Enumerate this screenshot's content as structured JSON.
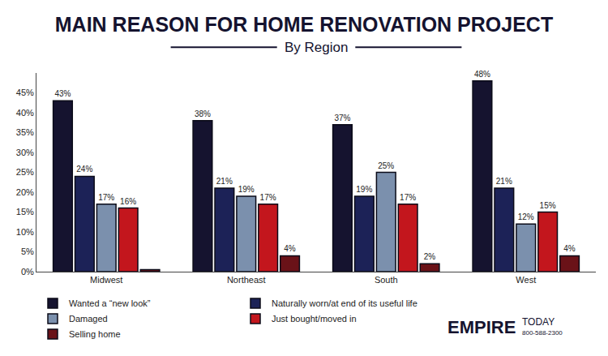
{
  "chart_data": {
    "type": "bar",
    "title": "MAIN REASON FOR HOME RENOVATION PROJECT",
    "subtitle": "By Region",
    "categories": [
      "Midwest",
      "Northeast",
      "South",
      "West"
    ],
    "series": [
      {
        "name": "Wanted a “new look”",
        "color": "#15132f",
        "values": [
          43,
          38,
          37,
          48
        ],
        "value_labels": [
          "43%",
          "38%",
          "37%",
          "48%"
        ]
      },
      {
        "name": "Naturally worn/at end of its useful life",
        "color": "#1c2257",
        "values": [
          24,
          21,
          19,
          21
        ],
        "value_labels": [
          "24%",
          "21%",
          "19%",
          "21%"
        ]
      },
      {
        "name": "Damaged",
        "color": "#7b90ad",
        "values": [
          17,
          19,
          25,
          12
        ],
        "value_labels": [
          "17%",
          "19%",
          "25%",
          "12%"
        ]
      },
      {
        "name": "Just bought/moved in",
        "color": "#c3161d",
        "values": [
          16,
          17,
          17,
          15
        ],
        "value_labels": [
          "16%",
          "17%",
          "17%",
          "15%"
        ]
      },
      {
        "name": "Selling home",
        "color": "#6a1218",
        "values": [
          0.5,
          4,
          2,
          4
        ],
        "value_labels": [
          null,
          "4%",
          "2%",
          "4%"
        ]
      }
    ],
    "ylim": [
      0,
      50
    ],
    "yticks": [
      {
        "value": 0,
        "label": "0%"
      },
      {
        "value": 5,
        "label": "5%"
      },
      {
        "value": 10,
        "label": "10%"
      },
      {
        "value": 15,
        "label": "15%"
      },
      {
        "value": 20,
        "label": "20%"
      },
      {
        "value": 25,
        "label": "25%"
      },
      {
        "value": 30,
        "label": "30%"
      },
      {
        "value": 35,
        "label": "35%"
      },
      {
        "value": 40,
        "label": "40%"
      },
      {
        "value": 45,
        "label": "45%"
      }
    ],
    "grid": false,
    "data_labels": true,
    "legend": "bottom",
    "annotations": [
      "EMPIRE",
      "TODAY",
      "800-588-2300"
    ]
  }
}
